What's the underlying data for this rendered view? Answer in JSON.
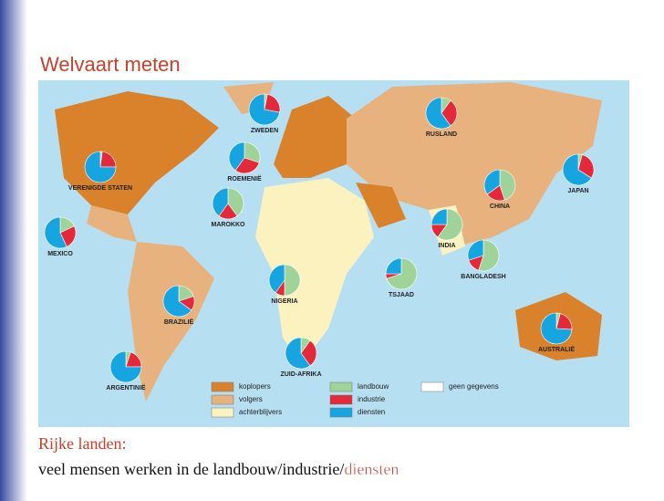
{
  "title": "Welvaart meten",
  "map": {
    "wealth": [
      {
        "label": "koplopers",
        "color": "#d9822b"
      },
      {
        "label": "volgers",
        "color": "#e8b27e"
      },
      {
        "label": "achterblijvers",
        "color": "#fbf2c0"
      }
    ],
    "sectors": [
      {
        "label": "landbouw",
        "color": "#9fd39a"
      },
      {
        "label": "industrie",
        "color": "#e4293a"
      },
      {
        "label": "diensten",
        "color": "#17a5e2"
      }
    ],
    "nodata": {
      "label": "geen gegevens",
      "color": "#ffffff"
    },
    "pies": [
      {
        "label": "VERENIGDE STATEN",
        "values": [
          2,
          23,
          75
        ]
      },
      {
        "label": "MEXICO",
        "values": [
          18,
          25,
          57
        ]
      },
      {
        "label": "BRAZILIË",
        "values": [
          20,
          15,
          65
        ]
      },
      {
        "label": "ARGENTINIË",
        "values": [
          5,
          20,
          75
        ]
      },
      {
        "label": "ZWEDEN",
        "values": [
          3,
          25,
          72
        ]
      },
      {
        "label": "ROEMENIË",
        "values": [
          30,
          30,
          40
        ]
      },
      {
        "label": "MAROKKO",
        "values": [
          40,
          20,
          40
        ]
      },
      {
        "label": "NIGERIA",
        "values": [
          50,
          10,
          40
        ]
      },
      {
        "label": "ZUID-AFRIKA",
        "values": [
          10,
          30,
          60
        ]
      },
      {
        "label": "RUSLAND",
        "values": [
          10,
          30,
          60
        ]
      },
      {
        "label": "CHINA",
        "values": [
          45,
          20,
          35
        ]
      },
      {
        "label": "INDIA",
        "values": [
          60,
          15,
          25
        ]
      },
      {
        "label": "BANGLADESH",
        "values": [
          55,
          15,
          30
        ]
      },
      {
        "label": "TSJAAD",
        "values": [
          70,
          5,
          25
        ]
      },
      {
        "label": "JAPAN",
        "values": [
          4,
          30,
          66
        ]
      },
      {
        "label": "AUSTRALIË",
        "values": [
          4,
          22,
          74
        ]
      }
    ]
  },
  "caption": {
    "heading": "Rijke landen:",
    "text": "veel mensen werken in de landbouw/industrie/",
    "highlight": "diensten"
  }
}
